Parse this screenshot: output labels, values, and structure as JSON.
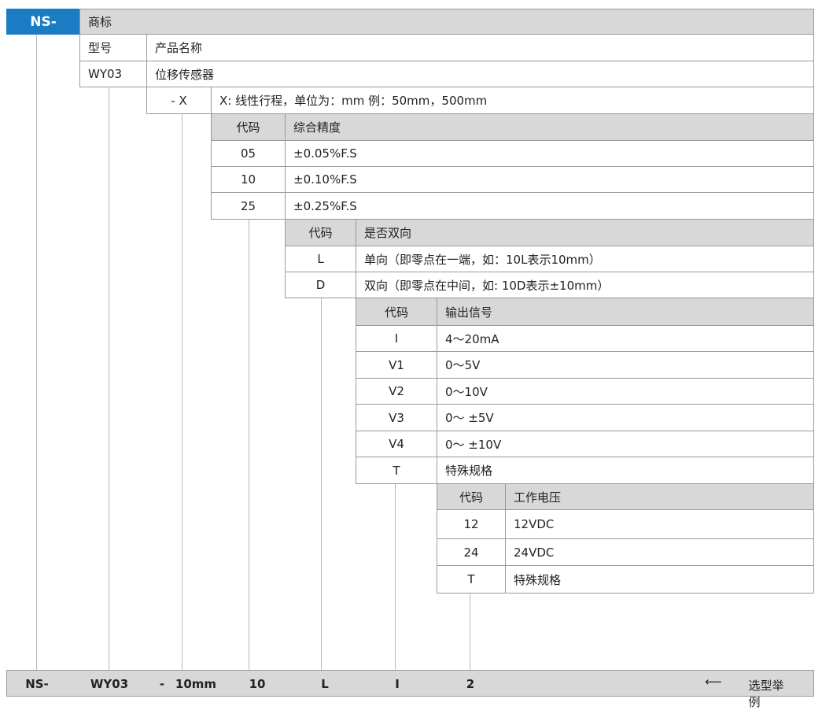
{
  "brand": {
    "code": "NS-",
    "label": "商标"
  },
  "model": {
    "header_code": "型号",
    "header_name": "产品名称",
    "code": "WY03",
    "name": "位移传感器"
  },
  "stroke": {
    "code": "- X",
    "desc": "X:  线性行程，单位为：mm 例：50mm，500mm"
  },
  "accuracy": {
    "header_code": "代码",
    "header_name": "综合精度",
    "rows": [
      {
        "code": "05",
        "value": "±0.05%F.S"
      },
      {
        "code": "10",
        "value": "±0.10%F.S"
      },
      {
        "code": "25",
        "value": "±0.25%F.S"
      }
    ]
  },
  "direction": {
    "header_code": "代码",
    "header_name": "是否双向",
    "rows": [
      {
        "code": "L",
        "value": "单向（即零点在一端，如：10L表示10mm）"
      },
      {
        "code": "D",
        "value": "双向（即零点在中间，如: 10D表示±10mm）"
      }
    ]
  },
  "output": {
    "header_code": "代码",
    "header_name": "输出信号",
    "rows": [
      {
        "code": "I",
        "value": "4～20mA"
      },
      {
        "code": "V1",
        "value": "0～5V"
      },
      {
        "code": "V2",
        "value": "0～10V"
      },
      {
        "code": "V3",
        "value": "0～ ±5V"
      },
      {
        "code": "V4",
        "value": "0～ ±10V"
      },
      {
        "code": "T",
        "value": "特殊规格"
      }
    ]
  },
  "voltage": {
    "header_code": "代码",
    "header_name": "工作电压",
    "rows": [
      {
        "code": "12",
        "value": "12VDC"
      },
      {
        "code": "24",
        "value": "24VDC"
      },
      {
        "code": "T",
        "value": "特殊规格"
      }
    ]
  },
  "example": {
    "parts": [
      "NS-",
      "WY03",
      "-",
      "10mm",
      "10",
      "L",
      "I",
      "2"
    ],
    "label": "选型举例"
  },
  "colors": {
    "brand_blue": "#1a7dc4",
    "header_gray": "#d8d8d8"
  }
}
